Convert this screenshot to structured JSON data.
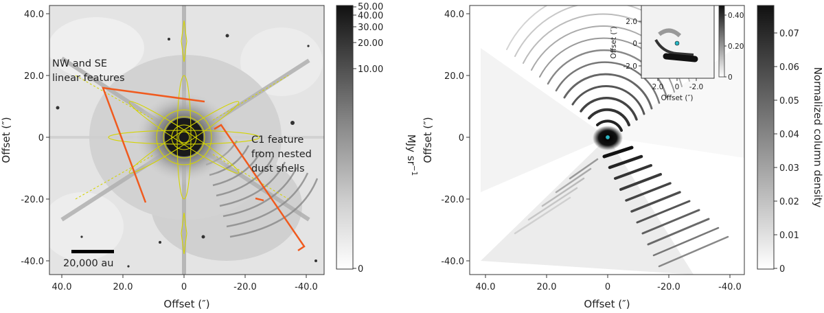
{
  "left_panel": {
    "x_tick_labels": [
      "40.0",
      "20.0",
      "0",
      "-20.0",
      "-40.0"
    ],
    "y_tick_labels": [
      "40.0",
      "20.0",
      "0",
      "-20.0",
      "-40.0"
    ],
    "xlabel": "Offset (″)",
    "ylabel": "Offset (″)",
    "annotations": {
      "linear_features_line1": "NW and SE",
      "linear_features_line2": "linear features",
      "c1_line1": "C1 feature",
      "c1_line2": "from nested",
      "c1_line3": "dust shells"
    },
    "scale_bar_label": "20,000 au",
    "colorbar": {
      "label": "MJy sr",
      "label_exponent": "−1",
      "tick_labels": [
        "50.00",
        "40.00",
        "30.00",
        "20.00",
        "10.00",
        "0"
      ],
      "tick_values": [
        50,
        40,
        30,
        20,
        10,
        0
      ]
    },
    "colors": {
      "contour": "#d4d400",
      "annotation": "#f05a1e"
    }
  },
  "right_panel": {
    "x_tick_labels": [
      "40.0",
      "20.0",
      "0",
      "-20.0",
      "-40.0"
    ],
    "y_tick_labels": [
      "40.0",
      "20.0",
      "0",
      "-20.0",
      "-40.0"
    ],
    "xlabel": "Offset (″)",
    "ylabel": "Offset (″)",
    "colorbar": {
      "label": "Normalized column density",
      "tick_labels": [
        "0.07",
        "0.06",
        "0.05",
        "0.04",
        "0.03",
        "0.02",
        "0.01",
        "0"
      ],
      "tick_values": [
        0.07,
        0.06,
        0.05,
        0.04,
        0.03,
        0.02,
        0.01,
        0
      ]
    },
    "inset": {
      "x_tick_labels": [
        "2.0",
        "0",
        "-2.0"
      ],
      "y_tick_labels": [
        "2.0",
        "0",
        "-2.0"
      ],
      "xlabel": "Offset (″)",
      "ylabel": "Offset (″)",
      "colorbar_tick_labels": [
        "0.40",
        "0.20",
        "0"
      ]
    },
    "colors": {
      "star_marker": "#2ab7c4"
    }
  }
}
